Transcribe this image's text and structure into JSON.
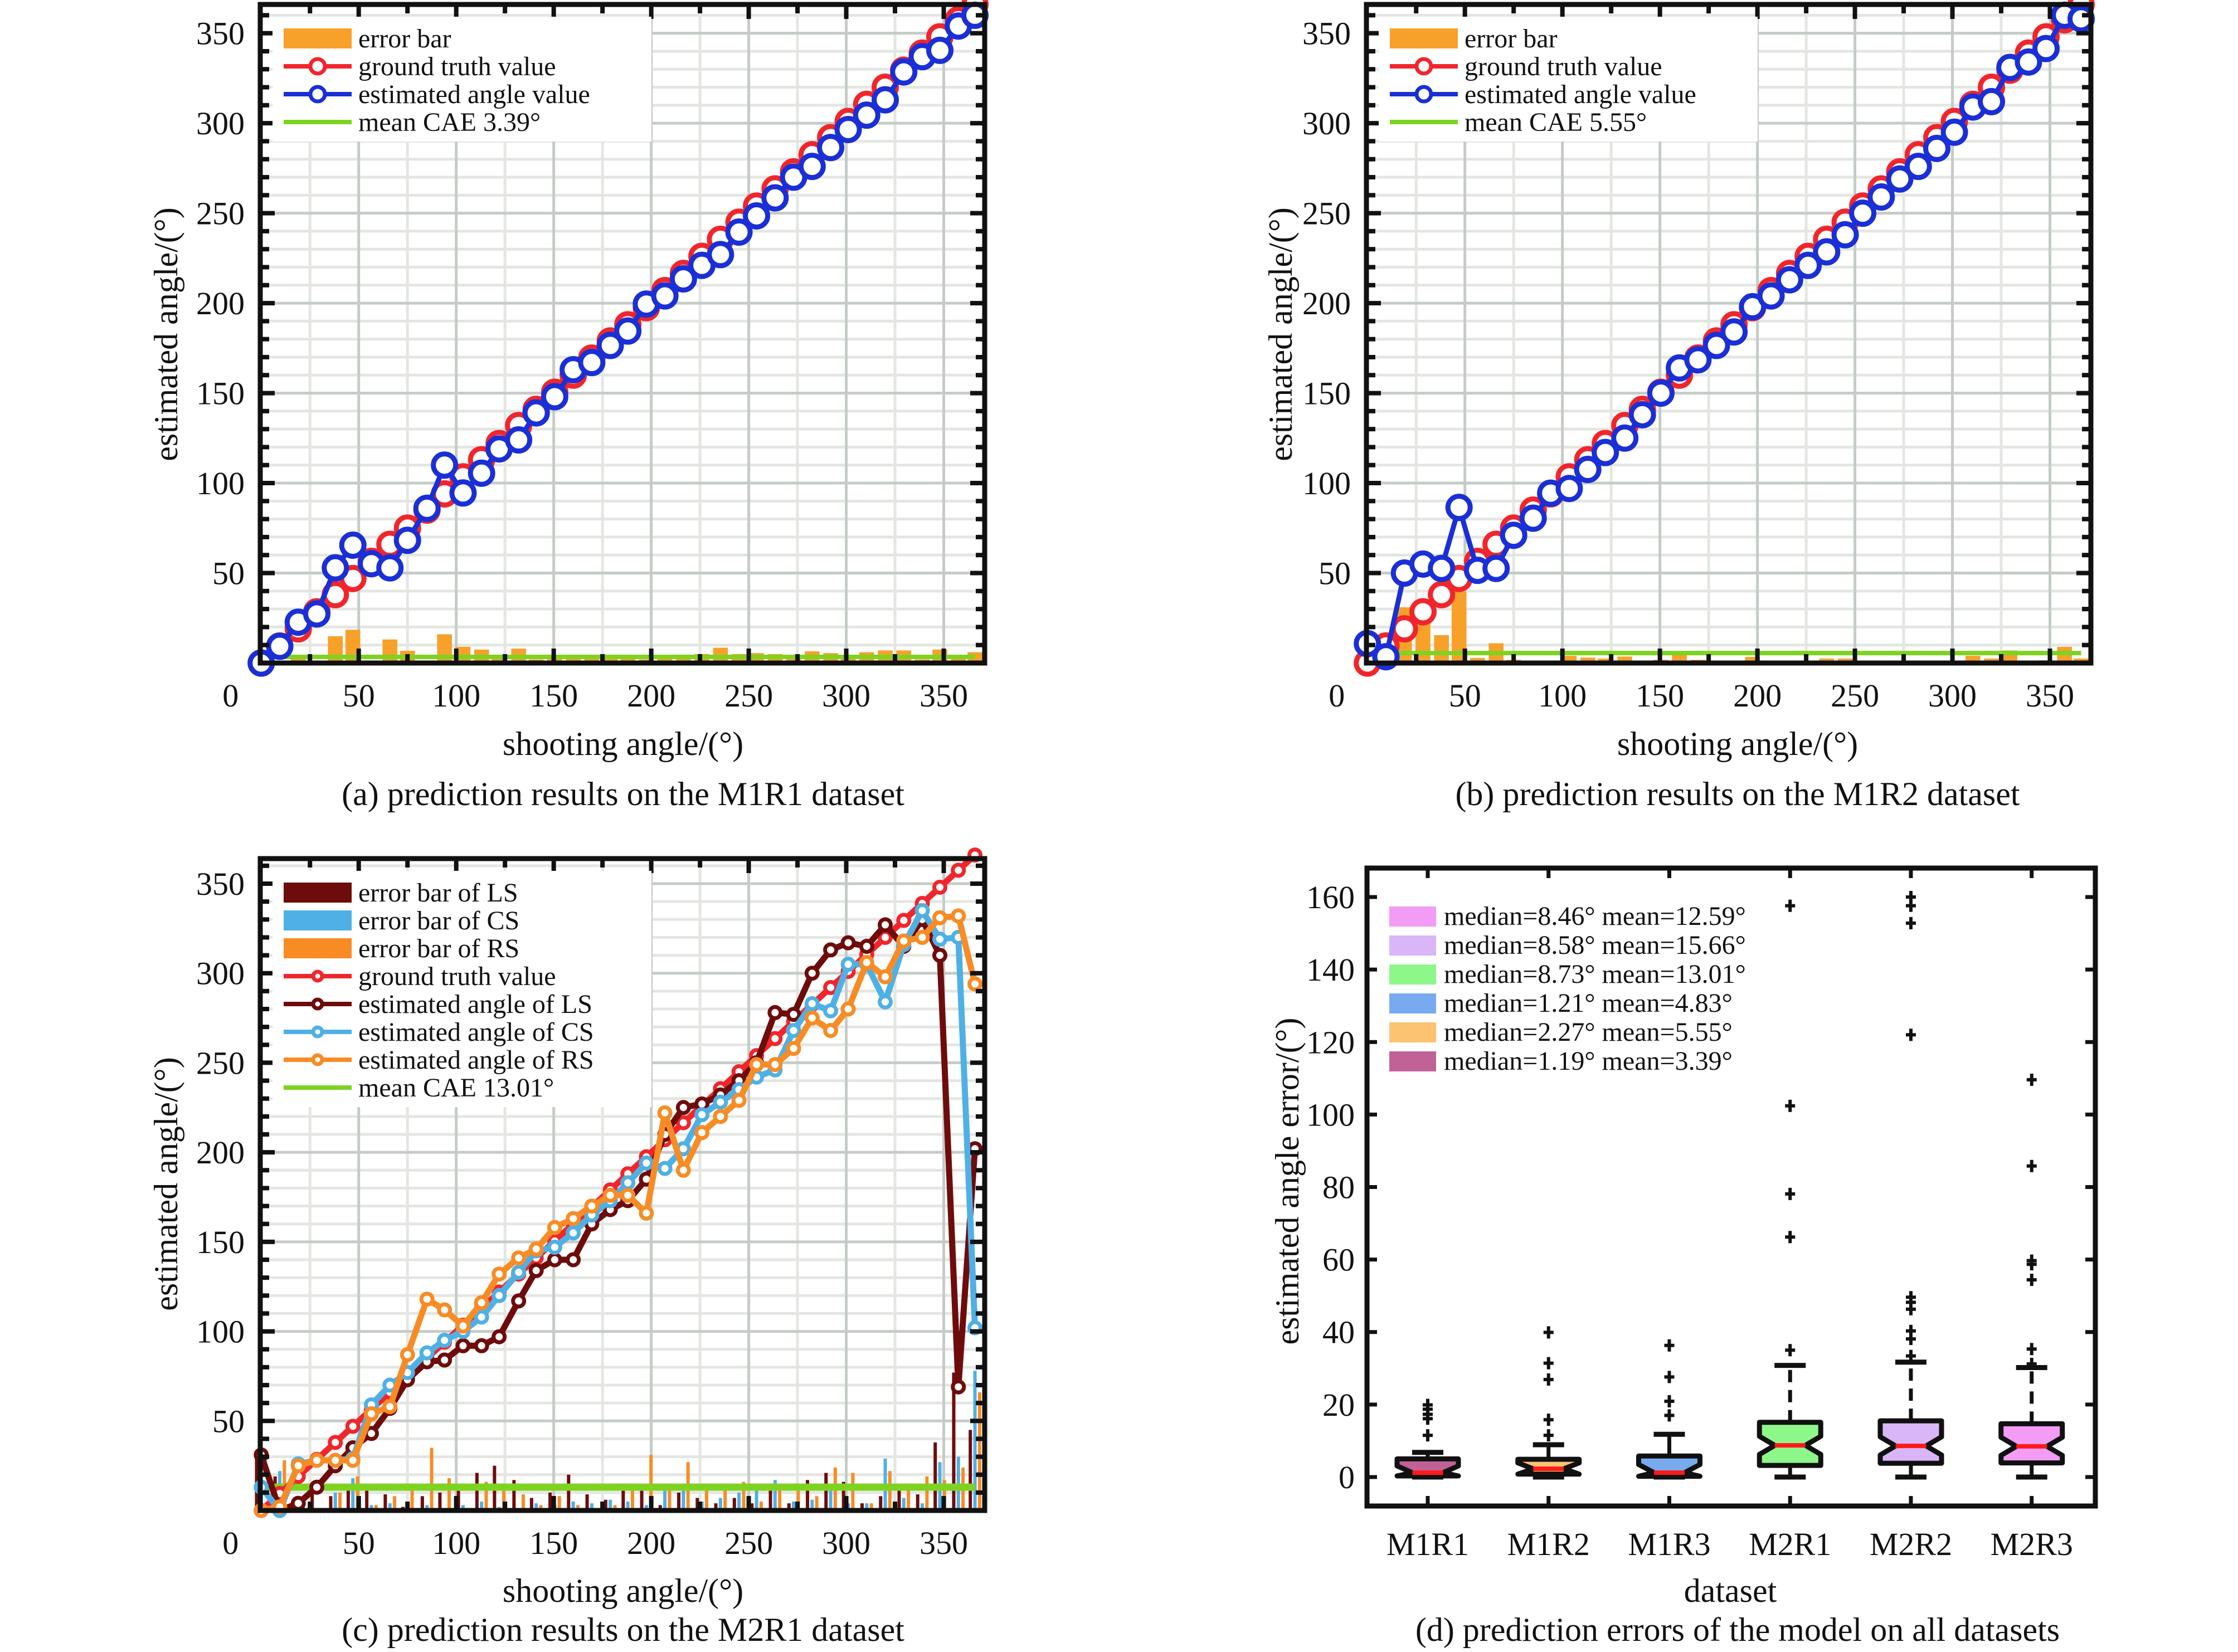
{
  "figure": {
    "title": "",
    "panels_count": 4
  },
  "chart_data": [
    {
      "id": "a",
      "type": "line",
      "caption": "(a) prediction results on the M1R1 dataset",
      "xlabel": "shooting angle/(°)",
      "ylabel": "estimated angle/(°)",
      "xlim": [
        -0.5,
        371
      ],
      "ylim": [
        0,
        366
      ],
      "xticks": [
        0,
        50,
        100,
        150,
        200,
        250,
        300,
        350
      ],
      "yticks": [
        50,
        100,
        150,
        200,
        250,
        300,
        350
      ],
      "grid": true,
      "legend_position": "top-left",
      "legend": [
        "error bar",
        "ground truth value",
        "estimated angle value",
        "mean CAE 3.39°"
      ],
      "x": [
        0,
        9.5,
        19,
        28.5,
        38,
        47,
        56.5,
        66,
        75,
        85,
        94,
        103.5,
        113,
        122,
        132,
        141,
        150.5,
        160,
        169.5,
        179,
        188,
        197.5,
        207,
        216.5,
        226,
        235.5,
        245,
        254,
        263.5,
        273,
        282.5,
        292,
        301,
        310.5,
        320,
        329.5,
        339,
        348,
        357.5,
        366
      ],
      "series": [
        {
          "name": "ground truth value",
          "color": "#f0262c",
          "values": [
            0,
            9.5,
            19,
            28.5,
            38,
            47,
            56.5,
            66,
            75,
            85,
            94,
            103.5,
            113,
            122,
            132,
            141,
            150.5,
            160,
            169.5,
            179,
            188,
            197.5,
            207,
            216.5,
            226,
            235.5,
            245,
            254,
            263.5,
            273,
            282.5,
            292,
            301,
            310.5,
            320,
            329.5,
            339,
            348,
            357.5,
            366
          ]
        },
        {
          "name": "estimated angle value",
          "color": "#1a2fd6",
          "values": [
            0,
            9.3,
            22.7,
            27.3,
            52.9,
            65.5,
            55.2,
            52.9,
            68.2,
            86,
            110,
            94.5,
            105.5,
            119,
            124,
            139,
            148,
            163,
            167,
            176.5,
            184.5,
            199.5,
            204,
            213.5,
            221,
            227,
            239.5,
            248.5,
            258.5,
            270,
            276,
            286.5,
            296.5,
            304.5,
            313,
            328.5,
            337,
            340.5,
            354,
            360
          ]
        }
      ],
      "error_bars": [
        {
          "name": "error bar",
          "color": "#f7a12a",
          "values": [
            0,
            0.2,
            3.7,
            1.2,
            14.9,
            18.5,
            1.3,
            13.1,
            6.8,
            1,
            16,
            9,
            7.5,
            3,
            8,
            2,
            2.5,
            3,
            2.5,
            2.5,
            3.5,
            2,
            3,
            3,
            5,
            8.5,
            5,
            5.5,
            5,
            3,
            6.5,
            5.5,
            4.5,
            6,
            7,
            7,
            2,
            7.5,
            3.5,
            6
          ]
        }
      ],
      "mean_line": {
        "name": "mean CAE 3.39°",
        "value": 3.39,
        "color": "#7ed321"
      }
    },
    {
      "id": "b",
      "type": "line",
      "caption": "(b) prediction results on the M1R2 dataset",
      "xlabel": "shooting angle/(°)",
      "ylabel": "estimated angle/(°)",
      "xlim": [
        -0.5,
        371
      ],
      "ylim": [
        0,
        366
      ],
      "xticks": [
        0,
        50,
        100,
        150,
        200,
        250,
        300,
        350
      ],
      "yticks": [
        50,
        100,
        150,
        200,
        250,
        300,
        350
      ],
      "grid": true,
      "legend_position": "top-left",
      "legend": [
        "error bar",
        "ground truth value",
        "estimated angle value",
        "mean CAE 5.55°"
      ],
      "x": [
        0,
        9.5,
        19,
        28.5,
        38,
        47,
        56.5,
        66,
        75,
        85,
        94,
        103.5,
        113,
        122,
        132,
        141,
        150.5,
        160,
        169.5,
        179,
        188,
        197.5,
        207,
        216.5,
        226,
        235.5,
        245,
        254,
        263.5,
        273,
        282.5,
        292,
        301,
        310.5,
        320,
        329.5,
        339,
        348,
        357.5,
        366
      ],
      "series": [
        {
          "name": "ground truth value",
          "color": "#f0262c",
          "values": [
            0,
            9.5,
            19,
            28.5,
            38,
            47,
            56.5,
            66,
            75,
            85,
            94,
            103.5,
            113,
            122,
            132,
            141,
            150.5,
            160,
            169.5,
            179,
            188,
            197.5,
            207,
            216.5,
            226,
            235.5,
            245,
            254,
            263.5,
            273,
            282.5,
            292,
            301,
            310.5,
            320,
            329.5,
            339,
            348,
            357.5,
            366
          ]
        },
        {
          "name": "estimated angle value",
          "color": "#1a2fd6",
          "values": [
            10.8,
            3.5,
            50,
            55,
            52.6,
            86.5,
            51.5,
            52.6,
            71,
            80.5,
            94.4,
            97,
            107.6,
            117,
            125,
            138,
            150,
            164,
            168.5,
            176.5,
            184,
            198,
            204,
            213,
            221,
            228.5,
            238,
            250,
            259,
            269,
            276,
            286,
            295,
            309,
            312,
            331,
            334,
            341.5,
            360,
            358
          ]
        }
      ],
      "error_bars": [
        {
          "name": "error bar",
          "color": "#f7a12a",
          "values": [
            5,
            2.5,
            31,
            27,
            15.5,
            39.7,
            2.8,
            11,
            1.8,
            1.2,
            1.2,
            4,
            3,
            2.5,
            3.6,
            0.5,
            1.8,
            6.4,
            1.8,
            0.5,
            0.5,
            3.4,
            0.5,
            0.5,
            0.5,
            2.5,
            2.5,
            0.5,
            0.5,
            1,
            1,
            0.5,
            0.5,
            4,
            2.5,
            7,
            1,
            1.5,
            9,
            2.5
          ]
        }
      ],
      "mean_line": {
        "name": "mean CAE 5.55°",
        "value": 5.55,
        "color": "#7ed321"
      }
    },
    {
      "id": "c",
      "type": "line",
      "caption": "(c) prediction results on the M2R1 dataset",
      "xlabel": "shooting angle/(°)",
      "ylabel": "estimated angle/(°)",
      "xlim": [
        -0.5,
        371
      ],
      "ylim": [
        0,
        364
      ],
      "xticks": [
        0,
        50,
        100,
        150,
        200,
        250,
        300,
        350
      ],
      "yticks": [
        50,
        100,
        150,
        200,
        250,
        300,
        350
      ],
      "grid": true,
      "legend_position": "top-left",
      "legend": [
        "error bar of LS",
        "error bar of CS",
        "error bar of RS",
        "ground truth value",
        "estimated angle of LS",
        "estimated angle of CS",
        "estimated angle of RS",
        "mean CAE 13.01°"
      ],
      "x": [
        0,
        9.5,
        19,
        28.5,
        38,
        47,
        56.5,
        66,
        75,
        85,
        94,
        103.5,
        113,
        122,
        132,
        141,
        150.5,
        160,
        169.5,
        179,
        188,
        197.5,
        207,
        216.5,
        226,
        235.5,
        245,
        254,
        263.5,
        273,
        282.5,
        292,
        301,
        310.5,
        320,
        329.5,
        339,
        348,
        357.5,
        366
      ],
      "series": [
        {
          "name": "ground truth value",
          "color": "#f0262c",
          "values": [
            0,
            9.5,
            19,
            28.5,
            38,
            47,
            56.5,
            66,
            75,
            85,
            94,
            103.5,
            113,
            122,
            132,
            141,
            150.5,
            160,
            169.5,
            179,
            188,
            197.5,
            207,
            216.5,
            226,
            235.5,
            245,
            254,
            263.5,
            273,
            282.5,
            292,
            301,
            310.5,
            320,
            329.5,
            339,
            348,
            357.5,
            366
          ]
        },
        {
          "name": "estimated angle of LS",
          "color": "#6e0c0c",
          "values": [
            31,
            0,
            4,
            13,
            25,
            35,
            43,
            57,
            73,
            83,
            84,
            92,
            92,
            97,
            117,
            134,
            140,
            140,
            160,
            168,
            173,
            185,
            210,
            225,
            227,
            232,
            240,
            250,
            278,
            277,
            300,
            313,
            317,
            315,
            327,
            315,
            330,
            310,
            69,
            202
          ]
        },
        {
          "name": "estimated angle of CS",
          "color": "#4fb0e5",
          "values": [
            13,
            0,
            26,
            28,
            28,
            29,
            59,
            70,
            77,
            88,
            95,
            100,
            108,
            120,
            133,
            145,
            147,
            155,
            165,
            173,
            183,
            194,
            191,
            202,
            221,
            228,
            235,
            242,
            246,
            268,
            283,
            279,
            305,
            305,
            284,
            316,
            335,
            319,
            320,
            102
          ]
        },
        {
          "name": "estimated angle of RS",
          "color": "#f78c25",
          "values": [
            0,
            2,
            25,
            28,
            28,
            28,
            54,
            58,
            87,
            118,
            112,
            103,
            116,
            132,
            141,
            146,
            158,
            163,
            170,
            176,
            176,
            166,
            222,
            190,
            211,
            220,
            229,
            249,
            249,
            258,
            275,
            268,
            280,
            306,
            298,
            318,
            320,
            331,
            332,
            294
          ]
        }
      ],
      "error_bars": [
        {
          "name": "error bar of LS",
          "color": "#6e0c0c",
          "values": [
            31,
            19,
            4,
            13,
            8,
            12,
            13,
            9,
            2,
            8,
            10,
            11,
            21,
            25,
            17,
            7,
            10,
            20,
            9,
            6,
            15,
            12,
            3,
            10,
            7,
            4,
            7,
            4,
            15,
            4,
            17,
            21,
            16,
            4,
            8,
            14,
            9,
            38,
            77,
            45
          ]
        },
        {
          "name": "error bar of CS",
          "color": "#4fb0e5",
          "values": [
            13,
            22,
            7,
            0.5,
            10,
            18,
            3,
            4,
            2,
            3,
            1,
            3,
            5,
            2,
            1,
            4,
            3,
            5,
            4,
            6,
            5,
            3,
            13,
            15,
            5,
            7,
            10,
            12,
            17,
            5,
            6,
            13,
            4,
            4,
            29,
            7,
            4,
            27,
            30,
            78
          ]
        },
        {
          "name": "error bar of RS",
          "color": "#f78c25",
          "values": [
            0,
            28,
            6,
            0.5,
            10,
            19,
            3,
            8,
            12,
            35,
            18,
            1,
            16,
            11,
            9,
            3,
            8,
            3,
            1,
            3,
            12,
            31,
            15,
            27,
            15,
            15,
            16,
            5,
            15,
            15,
            8,
            24,
            21,
            4,
            22,
            13,
            19,
            17,
            24,
            66
          ]
        }
      ],
      "mean_line": {
        "name": "mean CAE 13.01°",
        "value": 13.01,
        "color": "#7ed321"
      }
    },
    {
      "id": "d",
      "type": "box",
      "caption": "(d) prediction errors of the model on all datasets",
      "xlabel": "dataset",
      "ylabel": "estimated angle error/(°)",
      "ylim": [
        -8,
        168
      ],
      "yticks": [
        0,
        20,
        40,
        60,
        80,
        100,
        120,
        140,
        160
      ],
      "categories": [
        "M1R1",
        "M1R2",
        "M1R3",
        "M2R1",
        "M2R2",
        "M2R3"
      ],
      "grid": false,
      "legend_position": "top-left",
      "legend": [
        {
          "label": "median=8.46° mean=12.59°",
          "color": "#f29cf5"
        },
        {
          "label": "median=8.58° mean=15.66°",
          "color": "#d8b6f7"
        },
        {
          "label": "median=8.73° mean=13.01°",
          "color": "#8ef78a"
        },
        {
          "label": "median=1.21° mean=4.83°",
          "color": "#78aaf0"
        },
        {
          "label": "median=2.27° mean=5.55°",
          "color": "#fbc372"
        },
        {
          "label": "median=1.19° mean=3.39°",
          "color": "#c06296"
        }
      ],
      "boxes": [
        {
          "name": "M1R1",
          "color": "#c06296",
          "q1": 0.3,
          "median": 1.19,
          "q3": 5.0,
          "whisker_low": 0,
          "whisker_high": 6.8,
          "outliers": [
            11.5,
            16.1,
            17.3,
            18.7,
            19.9
          ]
        },
        {
          "name": "M1R2",
          "color": "#fbc372",
          "q1": 0.8,
          "median": 2.27,
          "q3": 4.9,
          "whisker_low": 0,
          "whisker_high": 8.9,
          "outliers": [
            11.5,
            15.8,
            26.9,
            31.4,
            39.9
          ]
        },
        {
          "name": "M1R3",
          "color": "#78aaf0",
          "q1": 0.2,
          "median": 1.21,
          "q3": 5.8,
          "whisker_low": 0,
          "whisker_high": 11.8,
          "outliers": [
            17.0,
            20.9,
            27.6,
            36.3
          ]
        },
        {
          "name": "M2R1",
          "color": "#8ef78a",
          "q1": 3.2,
          "median": 8.73,
          "q3": 15.1,
          "whisker_low": 0,
          "whisker_high": 30.8,
          "outliers": [
            35.0,
            66.2,
            78.1,
            102.4,
            157.6
          ]
        },
        {
          "name": "M2R2",
          "color": "#d8b6f7",
          "q1": 3.8,
          "median": 8.58,
          "q3": 15.5,
          "whisker_low": 0,
          "whisker_high": 31.7,
          "outliers": [
            33.4,
            38.1,
            40.3,
            46.3,
            48.2,
            49.6,
            122.0,
            152.8,
            157.6,
            160.0
          ]
        },
        {
          "name": "M2R3",
          "color": "#f29cf5",
          "q1": 3.9,
          "median": 8.46,
          "q3": 14.7,
          "whisker_low": 0,
          "whisker_high": 30.2,
          "outliers": [
            31.2,
            35.3,
            54.4,
            58.7,
            59.7,
            85.8,
            109.6
          ]
        }
      ],
      "median_color": "#ff1a1a",
      "outlier_marker": "+"
    }
  ]
}
